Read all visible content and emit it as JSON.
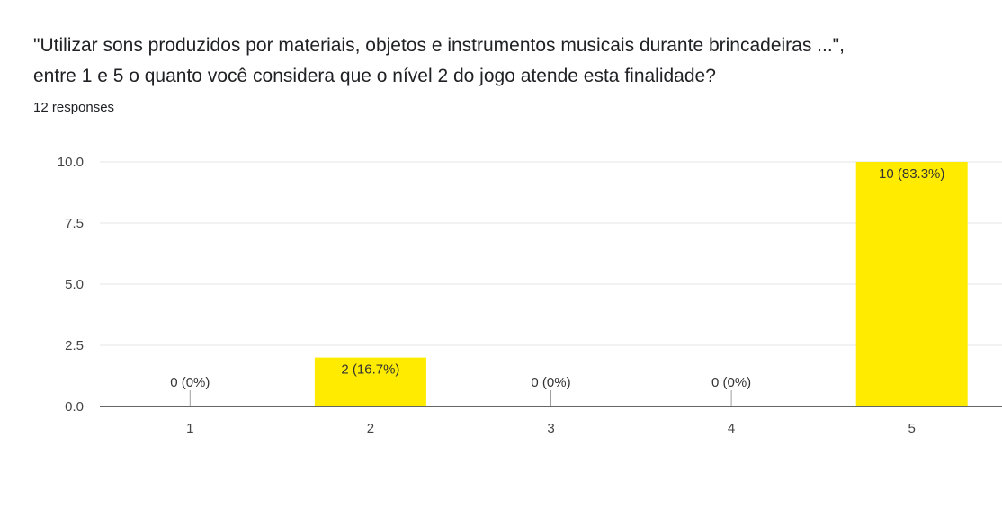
{
  "question": {
    "line1": "\"Utilizar sons produzidos por materiais, objetos e instrumentos musicais durante brincadeiras ...\",",
    "line2": "entre 1 e 5 o quanto você considera que o nível 2 do jogo atende esta finalidade?"
  },
  "responses_text": "12 responses",
  "chart_data": {
    "type": "bar",
    "categories": [
      "1",
      "2",
      "3",
      "4",
      "5"
    ],
    "values": [
      0,
      2,
      0,
      0,
      10
    ],
    "data_labels": [
      "0 (0%)",
      "2 (16.7%)",
      "0 (0%)",
      "0 (0%)",
      "10 (83.3%)"
    ],
    "ylim": [
      0,
      10
    ],
    "yticks": [
      0,
      2.5,
      5,
      7.5,
      10
    ],
    "ytick_labels": [
      "0.0",
      "2.5",
      "5.0",
      "7.5",
      "10.0"
    ],
    "grid": true,
    "colors": {
      "bar": "#ffeb00",
      "grid": "#e6e6e6",
      "axis": "#333333",
      "zero_tick": "#9e9e9e"
    }
  }
}
